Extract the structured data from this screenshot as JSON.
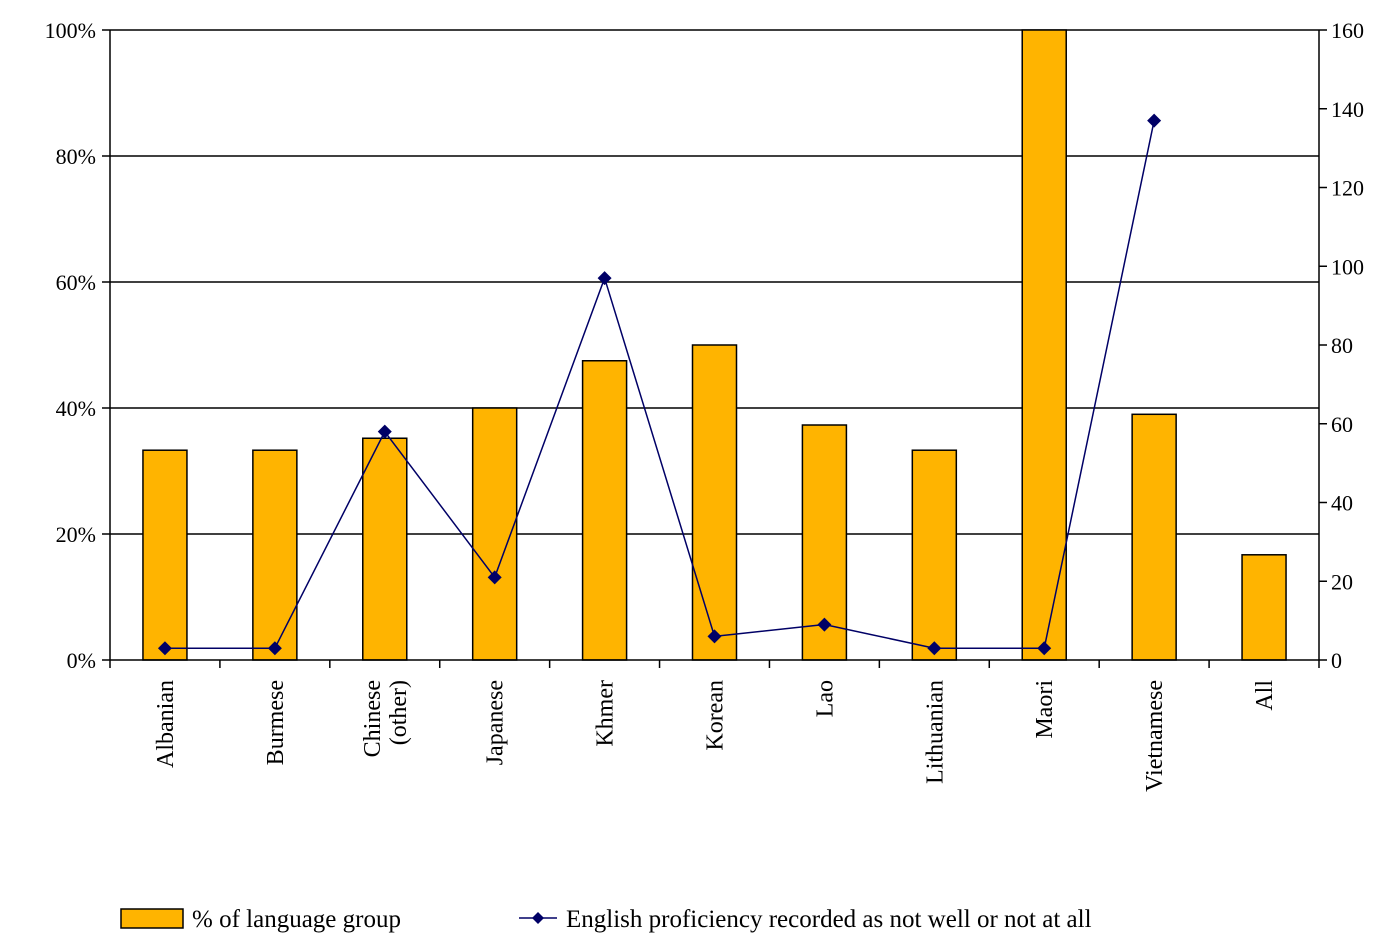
{
  "chart_data": {
    "type": "bar",
    "categories": [
      "Albanian",
      "Burmese",
      "Chinese\n(other)",
      "Japanese",
      "Khmer",
      "Korean",
      "Lao",
      "Lithuanian",
      "Maori",
      "Vietnamese",
      "All"
    ],
    "series": [
      {
        "name": "% of language group",
        "type": "bar",
        "axis": "left",
        "color": "#FFB400",
        "values": [
          33.3,
          33.3,
          35.2,
          40.0,
          47.5,
          50.0,
          37.3,
          33.3,
          100.0,
          39.0,
          16.7
        ]
      },
      {
        "name": "English proficiency recorded as not well or not at all",
        "type": "line",
        "axis": "right",
        "color": "#000066",
        "values": [
          3,
          3,
          58,
          21,
          97,
          6,
          9,
          3,
          3,
          137,
          null
        ]
      }
    ],
    "y_left": {
      "ylim": [
        0,
        100
      ],
      "ticks": [
        "0%",
        "20%",
        "40%",
        "60%",
        "80%",
        "100%"
      ]
    },
    "y_right": {
      "ylim": [
        0,
        160
      ],
      "ticks": [
        "0",
        "20",
        "40",
        "60",
        "80",
        "100",
        "120",
        "140",
        "160"
      ]
    },
    "grid": true,
    "legend": "bottom"
  }
}
